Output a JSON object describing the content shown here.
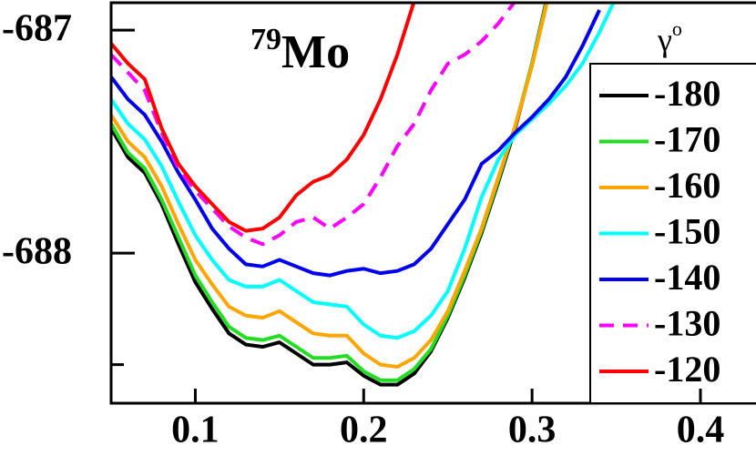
{
  "chart_data": {
    "type": "line",
    "annotation": {
      "mass": "79",
      "symbol": "Mo"
    },
    "legend_title": "γ",
    "legend_title_sup": "o",
    "legend": "right",
    "x": [
      0.05,
      0.06,
      0.07,
      0.08,
      0.09,
      0.1,
      0.11,
      0.12,
      0.13,
      0.14,
      0.15,
      0.16,
      0.17,
      0.18,
      0.19,
      0.2,
      0.21,
      0.22,
      0.23,
      0.24,
      0.25,
      0.26,
      0.27,
      0.28,
      0.29,
      0.3,
      0.31,
      0.32,
      0.33,
      0.34,
      0.35,
      0.36
    ],
    "series": [
      {
        "name": "-180",
        "color": "#000000",
        "dash": false,
        "values": [
          -687.44,
          -687.57,
          -687.64,
          -687.78,
          -687.96,
          -688.13,
          -688.25,
          -688.36,
          -688.41,
          -688.42,
          -688.4,
          -688.45,
          -688.5,
          -688.5,
          -688.49,
          -688.55,
          -688.59,
          -688.59,
          -688.54,
          -688.44,
          -688.29,
          -688.11,
          -687.91,
          -687.68,
          -687.44,
          -687.15,
          -686.82,
          null,
          null,
          null,
          null,
          null
        ]
      },
      {
        "name": "-170",
        "color": "#22dd22",
        "dash": false,
        "values": [
          -687.42,
          -687.55,
          -687.62,
          -687.76,
          -687.93,
          -688.1,
          -688.22,
          -688.33,
          -688.38,
          -688.39,
          -688.37,
          -688.42,
          -688.47,
          -688.47,
          -688.46,
          -688.53,
          -688.57,
          -688.57,
          -688.52,
          -688.43,
          -688.28,
          -688.1,
          -687.9,
          -687.67,
          -687.43,
          -687.15,
          -686.83,
          null,
          null,
          null,
          null,
          null
        ]
      },
      {
        "name": "-160",
        "color": "#ffa500",
        "dash": false,
        "values": [
          -687.38,
          -687.5,
          -687.57,
          -687.7,
          -687.87,
          -688.03,
          -688.14,
          -688.24,
          -688.28,
          -688.29,
          -688.26,
          -688.31,
          -688.36,
          -688.37,
          -688.37,
          -688.45,
          -688.5,
          -688.51,
          -688.47,
          -688.39,
          -688.26,
          -688.08,
          -687.89,
          -687.66,
          -687.43,
          -687.16,
          -686.84,
          null,
          null,
          null,
          null,
          null
        ]
      },
      {
        "name": "-150",
        "color": "#00ffff",
        "dash": false,
        "values": [
          -687.31,
          -687.42,
          -687.49,
          -687.61,
          -687.77,
          -687.92,
          -688.03,
          -688.12,
          -688.15,
          -688.15,
          -688.12,
          -688.17,
          -688.22,
          -688.23,
          -688.24,
          -688.32,
          -688.37,
          -688.38,
          -688.35,
          -688.28,
          -688.17,
          -687.98,
          -687.75,
          -687.58,
          -687.47,
          -687.4,
          -687.33,
          -687.25,
          -687.15,
          -687.01,
          -686.85,
          null
        ]
      },
      {
        "name": "-140",
        "color": "#0000ee",
        "dash": false,
        "values": [
          -687.21,
          -687.31,
          -687.38,
          -687.5,
          -687.64,
          -687.76,
          -687.89,
          -687.98,
          -688.05,
          -688.06,
          -688.03,
          -688.06,
          -688.09,
          -688.1,
          -688.08,
          -688.07,
          -688.09,
          -688.08,
          -688.05,
          -687.98,
          -687.87,
          -687.76,
          -687.6,
          -687.54,
          -687.46,
          -687.39,
          -687.31,
          -687.21,
          -687.07,
          -686.91,
          null,
          null
        ]
      },
      {
        "name": "-130",
        "color": "#ff00ff",
        "dash": true,
        "values": [
          -687.11,
          -687.19,
          -687.27,
          -687.46,
          -687.62,
          -687.72,
          -687.8,
          -687.88,
          -687.93,
          -687.96,
          -687.92,
          -687.86,
          -687.84,
          -687.89,
          -687.84,
          -687.78,
          -687.66,
          -687.52,
          -687.42,
          -687.27,
          -687.15,
          -687.11,
          -687.05,
          -686.97,
          -686.87,
          null,
          null,
          null,
          null,
          null,
          null,
          null
        ]
      },
      {
        "name": "-120",
        "color": "#ff0000",
        "dash": false,
        "values": [
          -687.06,
          -687.15,
          -687.22,
          -687.44,
          -687.6,
          -687.7,
          -687.78,
          -687.86,
          -687.9,
          -687.89,
          -687.84,
          -687.74,
          -687.68,
          -687.65,
          -687.58,
          -687.47,
          -687.31,
          -687.11,
          -686.87,
          null,
          null,
          null,
          null,
          null,
          null,
          null,
          null,
          null,
          null,
          null,
          null,
          null
        ]
      }
    ],
    "xlim": [
      0.05,
      0.433
    ],
    "xticks": [
      0.1,
      0.2,
      0.3,
      0.4
    ],
    "ylim": [
      -688.673,
      -686.865
    ],
    "yticks": [
      -688,
      -687
    ],
    "y_minor_ticks": [
      -688.5
    ]
  }
}
